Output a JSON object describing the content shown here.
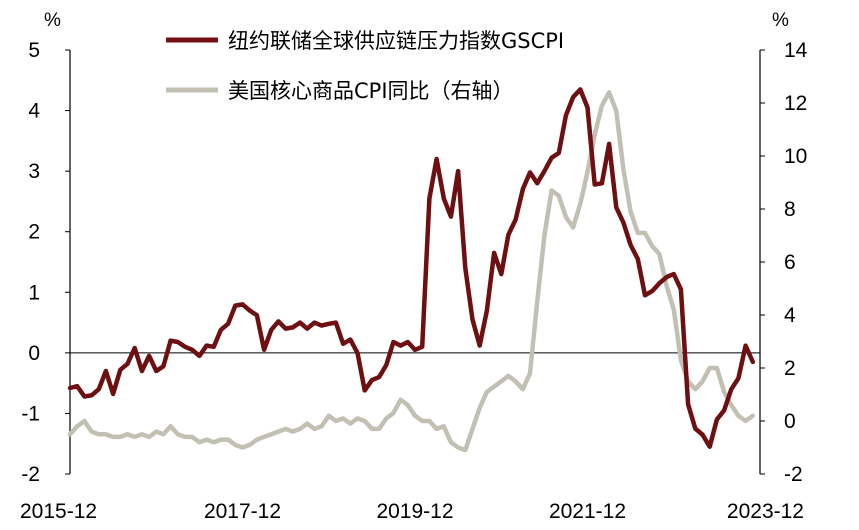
{
  "chart_data": {
    "type": "line",
    "left_unit": "%",
    "right_unit": "%",
    "left_axis": {
      "min": -2,
      "max": 5,
      "ticks": [
        "-2",
        "-1",
        "0",
        "1",
        "2",
        "3",
        "4",
        "5"
      ]
    },
    "right_axis": {
      "min": -2,
      "max": 14,
      "ticks": [
        "-2",
        "0",
        "2",
        "4",
        "6",
        "8",
        "10",
        "12",
        "14"
      ]
    },
    "x_start": "2015-12",
    "x_end": "2023-12",
    "x_ticks": [
      "2015-12",
      "2017-12",
      "2019-12",
      "2021-12",
      "2023-12"
    ],
    "legend_position": "top",
    "series": [
      {
        "name": "纽约联储全球供应链压力指数GSCPI",
        "axis": "left",
        "color": "#6e0f12",
        "values": [
          -0.58,
          -0.55,
          -0.72,
          -0.7,
          -0.6,
          -0.3,
          -0.68,
          -0.28,
          -0.18,
          0.08,
          -0.3,
          -0.05,
          -0.3,
          -0.22,
          0.2,
          0.18,
          0.1,
          0.05,
          -0.05,
          0.12,
          0.1,
          0.38,
          0.48,
          0.78,
          0.8,
          0.7,
          0.62,
          0.05,
          0.38,
          0.52,
          0.4,
          0.42,
          0.5,
          0.4,
          0.5,
          0.45,
          0.48,
          0.5,
          0.15,
          0.22,
          0.0,
          -0.62,
          -0.45,
          -0.4,
          -0.2,
          0.18,
          0.12,
          0.18,
          0.05,
          0.1,
          2.55,
          3.2,
          2.55,
          2.25,
          3.0,
          1.4,
          0.55,
          0.12,
          0.7,
          1.65,
          1.3,
          1.95,
          2.2,
          2.7,
          2.98,
          2.8,
          3.0,
          3.22,
          3.3,
          3.92,
          4.22,
          4.35,
          4.05,
          2.78,
          2.8,
          3.45,
          2.4,
          2.15,
          1.78,
          1.55,
          0.95,
          1.02,
          1.15,
          1.25,
          1.3,
          1.05,
          -0.85,
          -1.25,
          -1.35,
          -1.55,
          -1.1,
          -0.95,
          -0.6,
          -0.42,
          0.12,
          -0.15
        ]
      },
      {
        "name": "美国核心商品CPI同比（右轴）",
        "axis": "right",
        "color": "#c1c0b3",
        "values": [
          -0.5,
          -0.2,
          0.0,
          -0.4,
          -0.5,
          -0.5,
          -0.6,
          -0.6,
          -0.5,
          -0.6,
          -0.5,
          -0.6,
          -0.4,
          -0.5,
          -0.2,
          -0.5,
          -0.6,
          -0.6,
          -0.8,
          -0.7,
          -0.8,
          -0.7,
          -0.7,
          -0.9,
          -1.0,
          -0.9,
          -0.7,
          -0.6,
          -0.5,
          -0.4,
          -0.3,
          -0.4,
          -0.3,
          -0.1,
          -0.3,
          -0.2,
          0.2,
          0.0,
          0.1,
          -0.1,
          0.1,
          0.0,
          -0.3,
          -0.3,
          0.1,
          0.3,
          0.8,
          0.6,
          0.2,
          0.0,
          0.0,
          -0.3,
          -0.2,
          -0.8,
          -1.0,
          -1.1,
          -0.3,
          0.5,
          1.1,
          1.3,
          1.5,
          1.7,
          1.5,
          1.2,
          1.8,
          4.5,
          7.0,
          8.7,
          8.5,
          7.7,
          7.3,
          8.2,
          9.4,
          10.8,
          11.9,
          12.4,
          11.7,
          9.5,
          7.9,
          7.1,
          7.1,
          6.6,
          6.3,
          5.1,
          4.2,
          2.3,
          1.5,
          1.2,
          1.5,
          2.0,
          2.0,
          1.1,
          0.6,
          0.2,
          0.0,
          0.2
        ]
      }
    ]
  }
}
